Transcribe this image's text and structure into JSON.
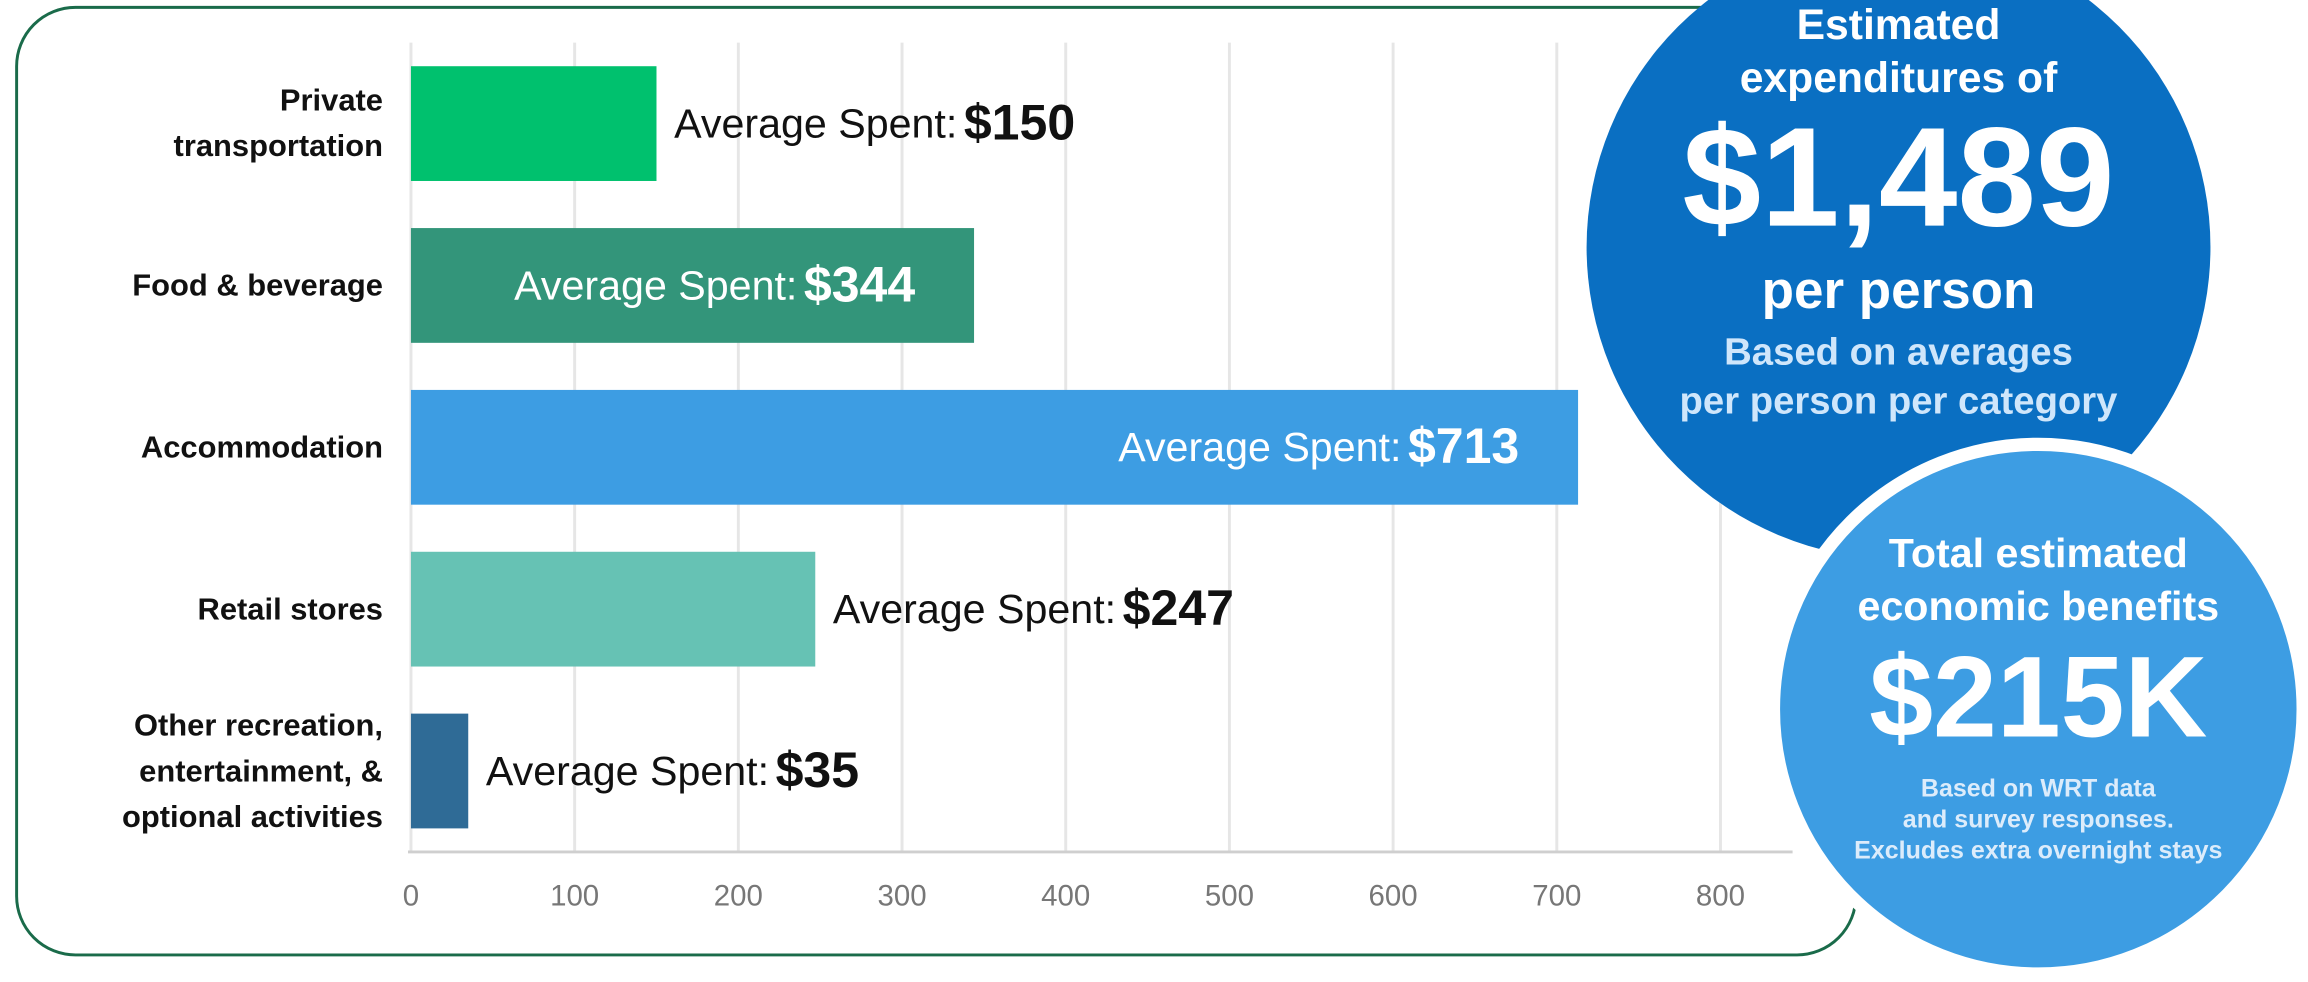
{
  "chart_data": {
    "type": "hbar",
    "categories": [
      "Private transportation",
      "Food & beverage",
      "Accommodation",
      "Retail stores",
      "Other recreation, entertainment, & optional activities"
    ],
    "values": [
      150,
      344,
      713,
      247,
      35
    ],
    "value_labels": [
      "$150",
      "$344",
      "$713",
      "$247",
      "$35"
    ],
    "value_label_prefix": "Average Spent:",
    "label_inside": [
      false,
      true,
      true,
      false,
      false
    ],
    "colors": [
      "#00c16e",
      "#33957a",
      "#3d9de3",
      "#66c2b4",
      "#2f6b96"
    ],
    "xlim": [
      0,
      800
    ],
    "xticks": [
      0,
      100,
      200,
      300,
      400,
      500,
      600,
      700,
      800
    ],
    "grid": true
  },
  "callouts": [
    {
      "heading": [
        "Estimated",
        "expenditures of"
      ],
      "figure": "$1,489",
      "unit": "per person",
      "note": [
        "Based on averages",
        "per person per category"
      ],
      "color": "#0a6fc2"
    },
    {
      "heading": [
        "Total estimated",
        "economic benefits"
      ],
      "figure": "$215K",
      "note": [
        "Based on WRT data",
        "and survey responses.",
        "Excludes extra overnight stays"
      ],
      "color": "#3d9de3"
    }
  ]
}
